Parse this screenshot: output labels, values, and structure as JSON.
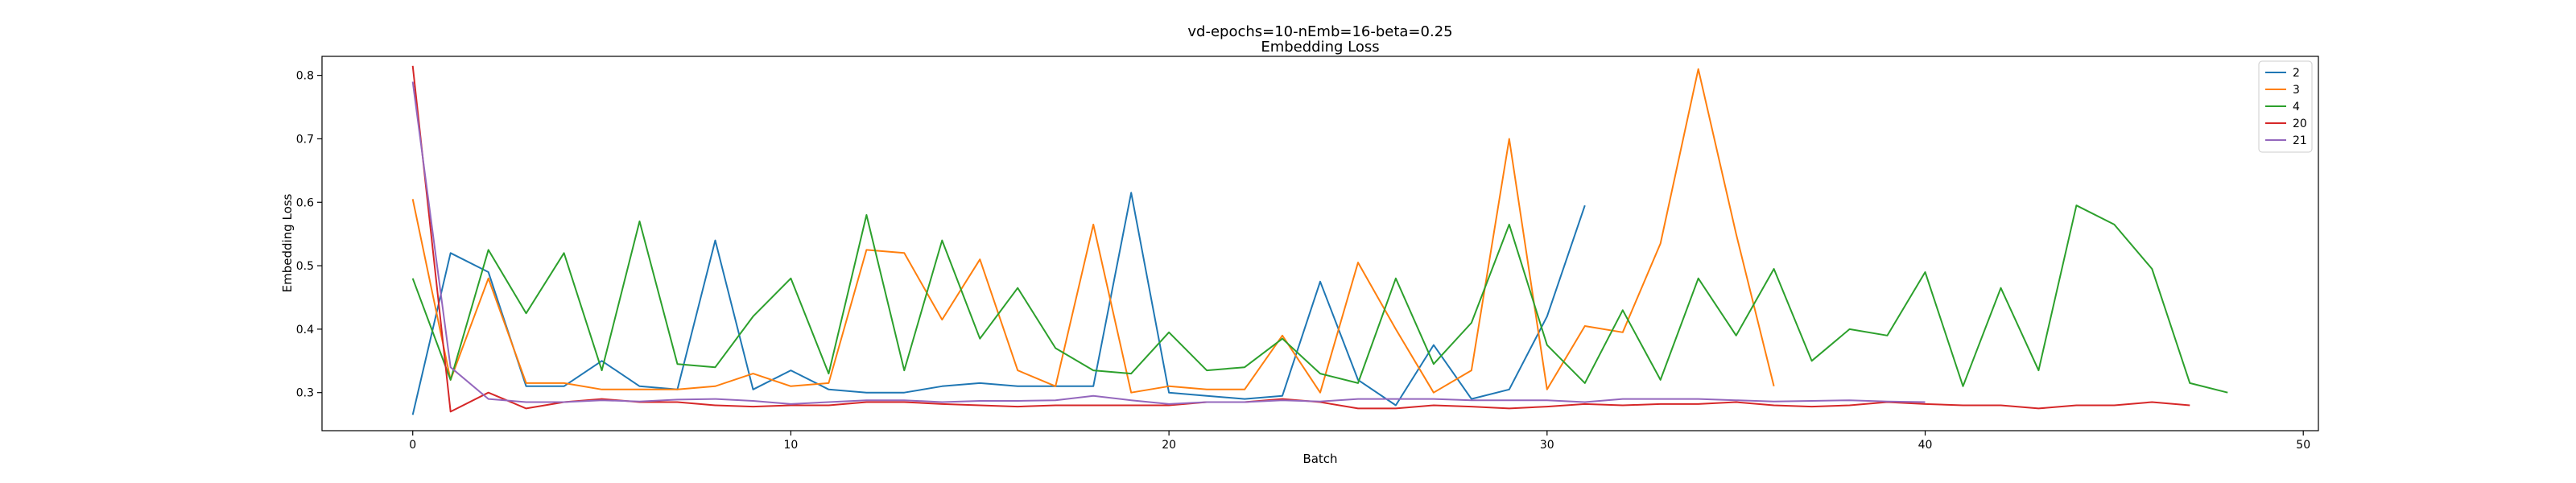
{
  "chart_data": {
    "type": "line",
    "title": "vd-epochs=10-nEmb=16-beta=0.25",
    "subtitle": "Embedding Loss",
    "xlabel": "Batch",
    "ylabel": "Embedding Loss",
    "xlim": [
      -2.4,
      50.4
    ],
    "ylim": [
      0.24,
      0.83
    ],
    "xticks": [
      0,
      10,
      20,
      30,
      40,
      50
    ],
    "yticks": [
      0.3,
      0.4,
      0.5,
      0.6,
      0.7,
      0.8
    ],
    "grid": false,
    "legend": "top-right",
    "series": [
      {
        "name": "2",
        "color": "#1f77b4",
        "values": [
          0.265,
          0.52,
          0.49,
          0.31,
          0.31,
          0.35,
          0.31,
          0.305,
          0.54,
          0.305,
          0.335,
          0.305,
          0.3,
          0.3,
          0.31,
          0.315,
          0.31,
          0.31,
          0.31,
          0.615,
          0.3,
          0.295,
          0.29,
          0.295,
          0.475,
          0.32,
          0.28,
          0.375,
          0.29,
          0.305,
          0.42,
          0.595
        ]
      },
      {
        "name": "3",
        "color": "#ff7f0e",
        "values": [
          0.605,
          0.32,
          0.48,
          0.315,
          0.315,
          0.305,
          0.305,
          0.305,
          0.31,
          0.33,
          0.31,
          0.315,
          0.525,
          0.52,
          0.415,
          0.51,
          0.335,
          0.31,
          0.565,
          0.3,
          0.31,
          0.305,
          0.305,
          0.39,
          0.3,
          0.505,
          0.4,
          0.3,
          0.335,
          0.7,
          0.305,
          0.405,
          0.395,
          0.535,
          0.81,
          0.55,
          0.31
        ]
      },
      {
        "name": "4",
        "color": "#2ca02c",
        "values": [
          0.48,
          0.32,
          0.525,
          0.425,
          0.52,
          0.335,
          0.57,
          0.345,
          0.34,
          0.42,
          0.48,
          0.33,
          0.58,
          0.335,
          0.54,
          0.385,
          0.465,
          0.37,
          0.335,
          0.33,
          0.395,
          0.335,
          0.34,
          0.385,
          0.33,
          0.315,
          0.48,
          0.345,
          0.41,
          0.565,
          0.375,
          0.315,
          0.43,
          0.32,
          0.48,
          0.39,
          0.495,
          0.35,
          0.4,
          0.39,
          0.49,
          0.31,
          0.465,
          0.335,
          0.595,
          0.565,
          0.495,
          0.315,
          0.3
        ]
      },
      {
        "name": "20",
        "color": "#d62728",
        "values": [
          0.815,
          0.27,
          0.3,
          0.275,
          0.285,
          0.29,
          0.285,
          0.285,
          0.28,
          0.278,
          0.28,
          0.28,
          0.285,
          0.285,
          0.282,
          0.28,
          0.278,
          0.28,
          0.28,
          0.28,
          0.28,
          0.285,
          0.285,
          0.29,
          0.285,
          0.275,
          0.275,
          0.28,
          0.278,
          0.275,
          0.278,
          0.282,
          0.28,
          0.282,
          0.282,
          0.285,
          0.28,
          0.278,
          0.28,
          0.285,
          0.282,
          0.28,
          0.28,
          0.275,
          0.28,
          0.28,
          0.285,
          0.28
        ]
      },
      {
        "name": "21",
        "color": "#9467bd",
        "values": [
          0.79,
          0.34,
          0.29,
          0.285,
          0.285,
          0.288,
          0.286,
          0.289,
          0.29,
          0.287,
          0.282,
          0.285,
          0.288,
          0.288,
          0.285,
          0.287,
          0.287,
          0.288,
          0.295,
          0.288,
          0.282,
          0.285,
          0.285,
          0.288,
          0.286,
          0.29,
          0.29,
          0.29,
          0.288,
          0.288,
          0.288,
          0.285,
          0.29,
          0.29,
          0.29,
          0.288,
          0.286,
          0.287,
          0.288,
          0.286,
          0.285
        ]
      }
    ]
  }
}
